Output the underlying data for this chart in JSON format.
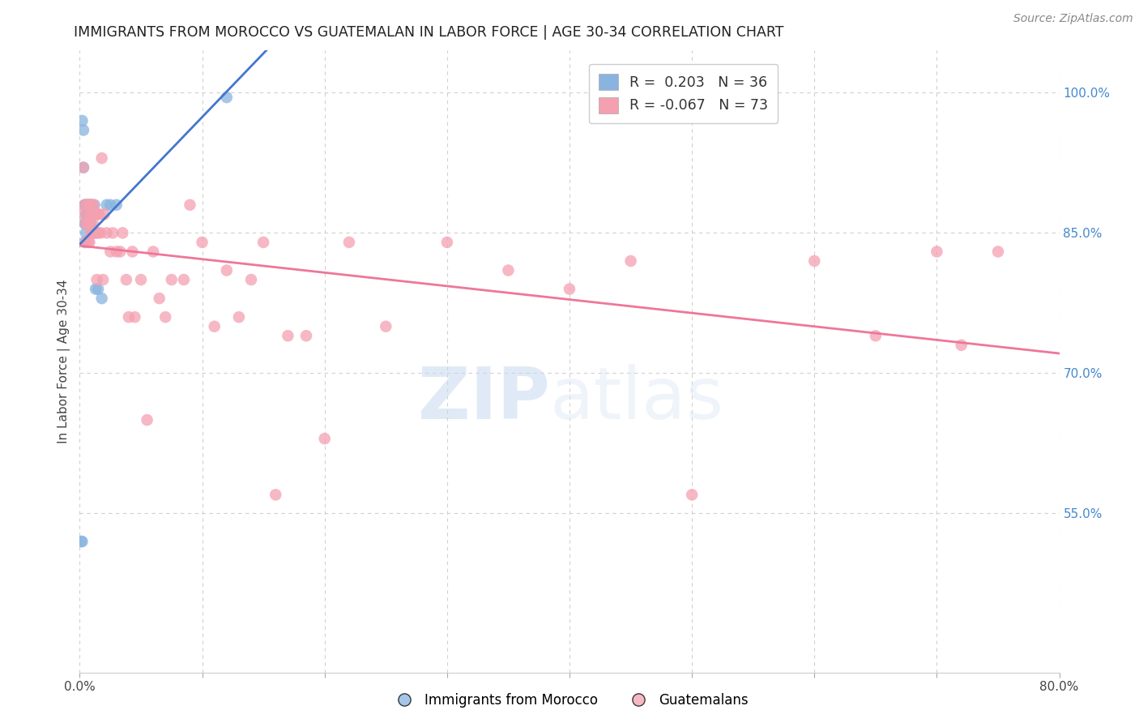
{
  "title": "IMMIGRANTS FROM MOROCCO VS GUATEMALAN IN LABOR FORCE | AGE 30-34 CORRELATION CHART",
  "source": "Source: ZipAtlas.com",
  "ylabel": "In Labor Force | Age 30-34",
  "xlim": [
    0.0,
    0.8
  ],
  "ylim": [
    0.38,
    1.045
  ],
  "xticks": [
    0.0,
    0.1,
    0.2,
    0.3,
    0.4,
    0.5,
    0.6,
    0.7,
    0.8
  ],
  "xticklabels": [
    "0.0%",
    "",
    "",
    "",
    "",
    "",
    "",
    "",
    "80.0%"
  ],
  "yticks_right": [
    0.55,
    0.7,
    0.85,
    1.0
  ],
  "ytick_right_labels": [
    "55.0%",
    "70.0%",
    "85.0%",
    "100.0%"
  ],
  "grid_color": "#d0d0d0",
  "background_color": "#ffffff",
  "blue_color": "#89b4e0",
  "pink_color": "#f4a0b0",
  "blue_line_color": "#4477cc",
  "pink_line_color": "#ee7799",
  "legend_R_blue": " 0.203",
  "legend_N_blue": "36",
  "legend_R_pink": "-0.067",
  "legend_N_pink": "73",
  "watermark_zip": "ZIP",
  "watermark_atlas": "atlas",
  "blue_x": [
    0.001,
    0.002,
    0.003,
    0.003,
    0.004,
    0.004,
    0.004,
    0.005,
    0.005,
    0.005,
    0.005,
    0.006,
    0.006,
    0.006,
    0.007,
    0.007,
    0.007,
    0.007,
    0.008,
    0.008,
    0.008,
    0.008,
    0.009,
    0.009,
    0.009,
    0.01,
    0.01,
    0.012,
    0.013,
    0.015,
    0.018,
    0.022,
    0.025,
    0.03,
    0.002,
    0.12
  ],
  "blue_y": [
    0.52,
    0.52,
    0.96,
    0.92,
    0.88,
    0.86,
    0.84,
    0.88,
    0.87,
    0.86,
    0.85,
    0.88,
    0.87,
    0.86,
    0.88,
    0.87,
    0.87,
    0.86,
    0.88,
    0.87,
    0.87,
    0.86,
    0.88,
    0.87,
    0.86,
    0.88,
    0.87,
    0.88,
    0.79,
    0.79,
    0.78,
    0.88,
    0.88,
    0.88,
    0.97,
    0.995
  ],
  "pink_x": [
    0.001,
    0.003,
    0.004,
    0.005,
    0.005,
    0.006,
    0.006,
    0.007,
    0.007,
    0.007,
    0.008,
    0.008,
    0.008,
    0.009,
    0.009,
    0.009,
    0.01,
    0.01,
    0.01,
    0.011,
    0.011,
    0.012,
    0.012,
    0.013,
    0.013,
    0.014,
    0.015,
    0.015,
    0.016,
    0.017,
    0.018,
    0.019,
    0.02,
    0.022,
    0.025,
    0.027,
    0.03,
    0.033,
    0.035,
    0.038,
    0.04,
    0.043,
    0.045,
    0.05,
    0.055,
    0.06,
    0.065,
    0.07,
    0.075,
    0.085,
    0.09,
    0.1,
    0.11,
    0.12,
    0.13,
    0.14,
    0.15,
    0.16,
    0.17,
    0.185,
    0.2,
    0.22,
    0.25,
    0.3,
    0.35,
    0.4,
    0.45,
    0.5,
    0.6,
    0.65,
    0.7,
    0.72,
    0.75
  ],
  "pink_y": [
    0.87,
    0.92,
    0.88,
    0.86,
    0.84,
    0.88,
    0.86,
    0.88,
    0.86,
    0.84,
    0.87,
    0.86,
    0.84,
    0.88,
    0.87,
    0.85,
    0.88,
    0.87,
    0.85,
    0.88,
    0.86,
    0.87,
    0.85,
    0.87,
    0.85,
    0.8,
    0.87,
    0.85,
    0.87,
    0.85,
    0.93,
    0.8,
    0.87,
    0.85,
    0.83,
    0.85,
    0.83,
    0.83,
    0.85,
    0.8,
    0.76,
    0.83,
    0.76,
    0.8,
    0.65,
    0.83,
    0.78,
    0.76,
    0.8,
    0.8,
    0.88,
    0.84,
    0.75,
    0.81,
    0.76,
    0.8,
    0.84,
    0.57,
    0.74,
    0.74,
    0.63,
    0.84,
    0.75,
    0.84,
    0.81,
    0.79,
    0.82,
    0.57,
    0.82,
    0.74,
    0.83,
    0.73,
    0.83
  ]
}
